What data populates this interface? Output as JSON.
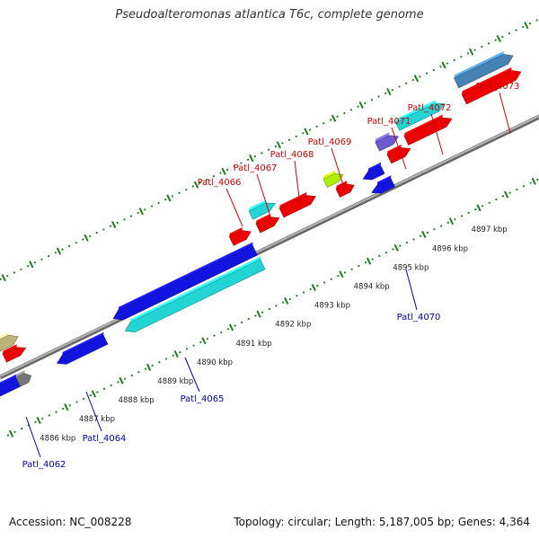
{
  "title": "Pseudoalteromonas atlantica T6c, complete genome",
  "accession_text": "Accession: NC_008228",
  "topology_text": "Topology: circular; Length: 5,187,005 bp; Genes: 4,364",
  "colors": {
    "backbone": "#8a8a8a",
    "tick_green": "#1e7d1e",
    "forward_label": "#cc0000",
    "reverse_label": "#0000aa",
    "red": "#ee0000",
    "blue": "#1414e0",
    "cyan": "#22d4d4",
    "olive": "#bdb37a",
    "purple": "#6a5acd",
    "lime": "#aaee00",
    "steel": "#4682b4",
    "gray": "#777777"
  },
  "scale_labels": [
    "4886 kbp",
    "4887 kbp",
    "4888 kbp",
    "4889 kbp",
    "4890 kbp",
    "4891 kbp",
    "4892 kbp",
    "4893 kbp",
    "4894 kbp",
    "4895 kbp",
    "4896 kbp",
    "4897 kbp"
  ],
  "forward_gene_labels": [
    "Patl_4066",
    "Patl_4067",
    "Patl_4068",
    "Patl_4069",
    "Patl_4071",
    "Patl_4072",
    "Patl_4073"
  ],
  "reverse_gene_labels": [
    "Patl_4062",
    "Patl_4064",
    "Patl_4065",
    "Patl_4070"
  ]
}
